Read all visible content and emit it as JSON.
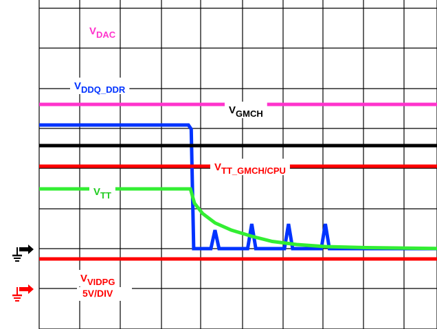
{
  "chart_data": {
    "type": "line",
    "title": "",
    "xlabel": "",
    "ylabel": "",
    "grid": true,
    "scale_label": "5V/DIV",
    "x_divisions": 10,
    "y_divisions": 8,
    "series": [
      {
        "name": "DAC",
        "label_main": "V",
        "label_sub": "DAC",
        "color": "#ff33cc",
        "label_color": "#ff33cc",
        "label_pos": "top-left",
        "points": [
          [
            0,
            7.0
          ],
          [
            10,
            7.0
          ]
        ]
      },
      {
        "name": "DDQ_DDR",
        "label_main": "V",
        "label_sub": "DDQ_DDR",
        "color": "#0033ff",
        "label_color": "#0033ff",
        "label_pos": "upper-left",
        "points": [
          [
            0,
            6.0
          ],
          [
            3.65,
            6.0
          ],
          [
            3.72,
            5.8
          ],
          [
            3.78,
            0.0
          ],
          [
            4.2,
            0.0
          ],
          [
            4.3,
            0.9
          ],
          [
            4.4,
            0.0
          ],
          [
            5.1,
            0.0
          ],
          [
            5.2,
            1.2
          ],
          [
            5.3,
            0.0
          ],
          [
            6.0,
            0.0
          ],
          [
            6.1,
            1.2
          ],
          [
            6.2,
            0.0
          ],
          [
            6.9,
            0.0
          ],
          [
            7.0,
            1.2
          ],
          [
            7.1,
            0.0
          ],
          [
            10,
            0.0
          ]
        ]
      },
      {
        "name": "GMCH",
        "label_main": "V",
        "label_sub": "GMCH",
        "color": "#000000",
        "label_color": "#000000",
        "label_pos": "center",
        "points": [
          [
            0,
            5.0
          ],
          [
            10,
            5.0
          ]
        ]
      },
      {
        "name": "TT_GMCH/CPU",
        "label_main": "V",
        "label_sub": "TT_GMCH/CPU",
        "color": "#ff0000",
        "label_color": "#ff0000",
        "label_pos": "center",
        "points": [
          [
            0,
            4.0
          ],
          [
            10,
            4.0
          ]
        ]
      },
      {
        "name": "TT",
        "label_main": "V",
        "label_sub": "TT",
        "color": "#33ee33",
        "label_color": "#22cc22",
        "label_pos": "left",
        "points": [
          [
            0,
            2.9
          ],
          [
            3.7,
            2.9
          ],
          [
            3.8,
            2.2
          ],
          [
            4.0,
            1.7
          ],
          [
            4.3,
            1.25
          ],
          [
            4.7,
            0.9
          ],
          [
            5.2,
            0.6
          ],
          [
            5.7,
            0.35
          ],
          [
            6.3,
            0.2
          ],
          [
            7.0,
            0.1
          ],
          [
            8.0,
            0.05
          ],
          [
            10,
            0.0
          ]
        ]
      },
      {
        "name": "VIDPG",
        "label_main": "V",
        "label_sub": "VIDPG",
        "color": "#ff0000",
        "label_color": "#ff0000",
        "label_pos": "bottom-left",
        "points": [
          [
            0,
            -0.5
          ],
          [
            10,
            -0.5
          ]
        ]
      }
    ]
  }
}
